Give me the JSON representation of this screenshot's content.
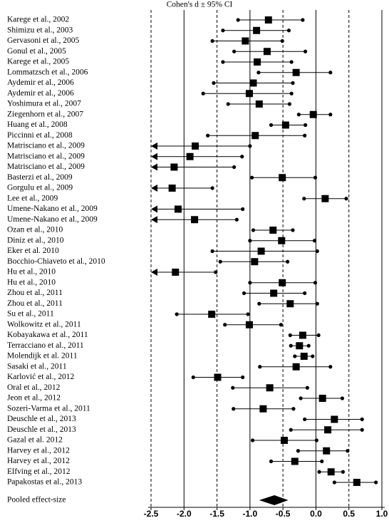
{
  "chart_data": {
    "type": "forest",
    "title": "Cohen's d ± 95% CI",
    "studies": [
      "Karege et al., 2002",
      "Shimizu et al., 2003",
      "Gervasoni et al., 2005",
      "Gonul et al., 2005",
      "Karege et al., 2005",
      "Lommatzsch et al., 2006",
      "Aydemir et al., 2006",
      "Aydemir et al., 2006",
      "Yoshimura et al., 2007",
      "Ziegenhorn et al., 2007",
      "Huang et al., 2008",
      "Piccinni et al., 2008",
      "Matrisciano et al., 2009",
      "Matrisciano et al., 2009",
      "Matrisciano et al., 2009",
      "Basterzi et al., 2009",
      "Gorgulu et al., 2009",
      "Lee et al., 2009",
      "Umene-Nakano et al., 2009",
      "Umene-Nakano et al., 2009",
      "Ozan et al., 2010",
      "Diniz et al., 2010",
      "Eker et al. 2010",
      "Bocchio-Chiaveto et al., 2010",
      "Hu et al., 2010",
      "Hu et al., 2010",
      "Zhou et al., 2011",
      "Zhou et al., 2011",
      "Su et al., 2011",
      "Wolkowitz et al., 2011",
      "Kobayakawa et al., 2011",
      "Terracciano et al., 2011",
      "Molendijk et al. 2011",
      "Sasaki et al., 2011",
      "Karlović et al., 2012",
      "Oral et al., 2012",
      "Jeon et al., 2012",
      "Sozeri-Varma et al., 2011",
      "Deuschle et al., 2013",
      "Deuschle et al., 2013",
      "Gazal et al. 2012",
      "Harvey et al., 2012",
      "Harvey et al., 2012",
      "Elfving et al., 2012",
      "Papakostas et al., 2013"
    ],
    "estimates": [
      -0.72,
      -0.9,
      -1.07,
      -0.74,
      -0.89,
      -0.3,
      -0.95,
      -1.01,
      -0.86,
      -0.04,
      -0.46,
      -0.92,
      -1.83,
      -1.91,
      -2.15,
      -0.51,
      -2.18,
      0.14,
      -2.09,
      -1.84,
      -0.65,
      -0.52,
      -0.83,
      -0.93,
      -2.13,
      -0.51,
      -0.64,
      -0.39,
      -1.58,
      -1.01,
      -0.2,
      -0.25,
      -0.18,
      -0.3,
      -1.49,
      -0.7,
      0.1,
      -0.8,
      0.28,
      0.18,
      -0.48,
      0.16,
      -0.32,
      0.23,
      0.62
    ],
    "lower": [
      -1.18,
      -1.41,
      -1.57,
      -1.24,
      -1.41,
      -0.87,
      -1.55,
      -1.71,
      -1.33,
      -0.26,
      -0.68,
      -1.64,
      null,
      null,
      null,
      -0.97,
      null,
      -0.18,
      null,
      null,
      -0.95,
      -1.0,
      -1.57,
      -1.45,
      null,
      -1.0,
      -1.09,
      -0.86,
      -2.11,
      -1.38,
      -0.39,
      -0.38,
      -0.32,
      -0.85,
      -1.86,
      -1.26,
      -0.23,
      -1.25,
      -0.17,
      -0.38,
      -0.96,
      -0.27,
      -0.68,
      0.05,
      0.28
    ],
    "upper": [
      -0.2,
      -0.41,
      -0.51,
      -0.16,
      -0.37,
      0.22,
      -0.35,
      -0.37,
      -0.4,
      0.22,
      -0.16,
      -0.17,
      -1.0,
      -1.12,
      -1.24,
      -0.01,
      -1.57,
      0.46,
      -1.11,
      -1.2,
      -0.35,
      -0.02,
      0.02,
      -0.43,
      -1.52,
      -0.01,
      -0.17,
      0.02,
      -1.03,
      -0.53,
      0.04,
      -0.11,
      -0.05,
      0.22,
      -1.11,
      -0.13,
      0.4,
      -0.34,
      0.7,
      0.7,
      0.01,
      0.48,
      0.09,
      0.41,
      0.91
    ],
    "pooled": {
      "label": "Pooled effect-size",
      "estimate": -0.63,
      "lower": -0.86,
      "upper": -0.42
    },
    "xlim": [
      -2.5,
      1.0
    ],
    "xticks": [
      -2.5,
      {
        "value": -2.0,
        "label": "-2.0"
      },
      -1.5,
      {
        "value": -1.0,
        "label": "-1.0"
      },
      -0.5,
      {
        "value": 0.0,
        "label": "0.0"
      },
      0.5,
      {
        "value": 1.0,
        "label": "1.0"
      }
    ],
    "color": "#000000"
  }
}
